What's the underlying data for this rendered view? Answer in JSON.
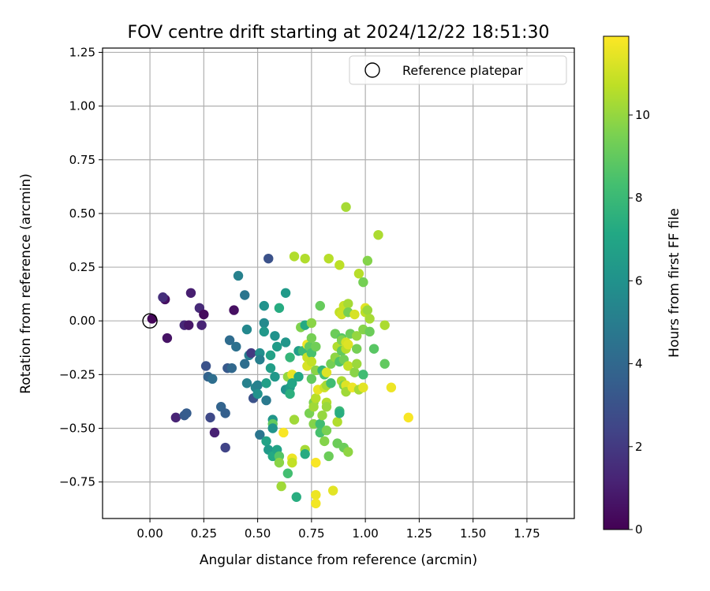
{
  "chart_data": {
    "type": "scatter",
    "title": "FOV centre drift starting at 2024/12/22 18:51:30",
    "xlabel": "Angular distance from reference (arcmin)",
    "ylabel": "Rotation from reference (arcmin)",
    "xlim": [
      -0.22,
      1.97
    ],
    "ylim": [
      -0.92,
      1.27
    ],
    "xticks": [
      0.0,
      0.25,
      0.5,
      0.75,
      1.0,
      1.25,
      1.5,
      1.75
    ],
    "xtick_labels": [
      "0.00",
      "0.25",
      "0.50",
      "0.75",
      "1.00",
      "1.25",
      "1.50",
      "1.75"
    ],
    "yticks": [
      -0.75,
      -0.5,
      -0.25,
      0.0,
      0.25,
      0.5,
      0.75,
      1.0,
      1.25
    ],
    "ytick_labels": [
      "−0.75",
      "−0.50",
      "−0.25",
      "0.00",
      "0.25",
      "0.50",
      "0.75",
      "1.00",
      "1.25"
    ],
    "grid": true,
    "legend": {
      "position": "top-right",
      "entries": [
        "Reference platepar"
      ]
    },
    "reference_point": {
      "x": 0.0,
      "y": 0.0
    },
    "colorbar": {
      "label": "Hours from first FF file",
      "colormap": "viridis",
      "range": [
        0,
        11.9
      ],
      "ticks": [
        0,
        2,
        4,
        6,
        8,
        10
      ],
      "tick_labels": [
        "0",
        "2",
        "4",
        "6",
        "8",
        "10"
      ]
    },
    "points": [
      {
        "x": 0.01,
        "y": 0.01,
        "h": 0.2
      },
      {
        "x": 0.07,
        "y": 0.1,
        "h": 0.5
      },
      {
        "x": 0.06,
        "y": 0.11,
        "h": 1.6
      },
      {
        "x": 0.08,
        "y": -0.08,
        "h": 0.6
      },
      {
        "x": 0.12,
        "y": -0.45,
        "h": 1.2
      },
      {
        "x": 0.16,
        "y": -0.44,
        "h": 3.4
      },
      {
        "x": 0.17,
        "y": -0.43,
        "h": 3.5
      },
      {
        "x": 0.16,
        "y": -0.02,
        "h": 1.3
      },
      {
        "x": 0.18,
        "y": -0.02,
        "h": 0.7
      },
      {
        "x": 0.19,
        "y": 0.13,
        "h": 1.0
      },
      {
        "x": 0.23,
        "y": 0.06,
        "h": 1.4
      },
      {
        "x": 0.25,
        "y": 0.03,
        "h": 0.3
      },
      {
        "x": 0.24,
        "y": -0.02,
        "h": 1.2
      },
      {
        "x": 0.26,
        "y": -0.21,
        "h": 3.0
      },
      {
        "x": 0.27,
        "y": -0.26,
        "h": 3.8
      },
      {
        "x": 0.29,
        "y": -0.27,
        "h": 4.3
      },
      {
        "x": 0.28,
        "y": -0.45,
        "h": 2.6
      },
      {
        "x": 0.3,
        "y": -0.52,
        "h": 1.1
      },
      {
        "x": 0.33,
        "y": -0.4,
        "h": 3.8
      },
      {
        "x": 0.35,
        "y": -0.43,
        "h": 3.6
      },
      {
        "x": 0.35,
        "y": -0.59,
        "h": 2.4
      },
      {
        "x": 0.37,
        "y": -0.09,
        "h": 4.2
      },
      {
        "x": 0.36,
        "y": -0.22,
        "h": 3.3
      },
      {
        "x": 0.38,
        "y": -0.22,
        "h": 4.0
      },
      {
        "x": 0.39,
        "y": 0.05,
        "h": 0.5
      },
      {
        "x": 0.4,
        "y": -0.12,
        "h": 4.4
      },
      {
        "x": 0.41,
        "y": 0.21,
        "h": 5.2
      },
      {
        "x": 0.44,
        "y": 0.12,
        "h": 4.6
      },
      {
        "x": 0.44,
        "y": -0.2,
        "h": 4.3
      },
      {
        "x": 0.45,
        "y": -0.04,
        "h": 5.5
      },
      {
        "x": 0.46,
        "y": -0.16,
        "h": 5.0
      },
      {
        "x": 0.45,
        "y": -0.29,
        "h": 5.2
      },
      {
        "x": 0.47,
        "y": -0.15,
        "h": 2.0
      },
      {
        "x": 0.48,
        "y": -0.36,
        "h": 3.0
      },
      {
        "x": 0.49,
        "y": -0.31,
        "h": 5.4
      },
      {
        "x": 0.5,
        "y": -0.3,
        "h": 5.2
      },
      {
        "x": 0.5,
        "y": -0.34,
        "h": 6.0
      },
      {
        "x": 0.51,
        "y": -0.15,
        "h": 5.8
      },
      {
        "x": 0.51,
        "y": -0.18,
        "h": 5.1
      },
      {
        "x": 0.51,
        "y": -0.53,
        "h": 4.6
      },
      {
        "x": 0.53,
        "y": -0.01,
        "h": 5.6
      },
      {
        "x": 0.53,
        "y": -0.05,
        "h": 6.3
      },
      {
        "x": 0.53,
        "y": 0.07,
        "h": 6.0
      },
      {
        "x": 0.54,
        "y": -0.29,
        "h": 6.7
      },
      {
        "x": 0.54,
        "y": -0.37,
        "h": 4.8
      },
      {
        "x": 0.55,
        "y": 0.29,
        "h": 3.0
      },
      {
        "x": 0.54,
        "y": -0.56,
        "h": 6.9
      },
      {
        "x": 0.55,
        "y": -0.6,
        "h": 6.4
      },
      {
        "x": 0.56,
        "y": -0.16,
        "h": 6.8
      },
      {
        "x": 0.56,
        "y": -0.22,
        "h": 6.6
      },
      {
        "x": 0.57,
        "y": -0.46,
        "h": 6.2
      },
      {
        "x": 0.57,
        "y": -0.48,
        "h": 9.0
      },
      {
        "x": 0.57,
        "y": -0.5,
        "h": 6.1
      },
      {
        "x": 0.57,
        "y": -0.63,
        "h": 7.2
      },
      {
        "x": 0.58,
        "y": -0.07,
        "h": 6.0
      },
      {
        "x": 0.58,
        "y": -0.26,
        "h": 6.3
      },
      {
        "x": 0.59,
        "y": -0.12,
        "h": 6.5
      },
      {
        "x": 0.59,
        "y": -0.6,
        "h": 6.9
      },
      {
        "x": 0.6,
        "y": 0.06,
        "h": 7.3
      },
      {
        "x": 0.6,
        "y": -0.63,
        "h": 8.7
      },
      {
        "x": 0.6,
        "y": -0.66,
        "h": 9.8
      },
      {
        "x": 0.61,
        "y": -0.77,
        "h": 10.2
      },
      {
        "x": 0.62,
        "y": -0.52,
        "h": 11.8
      },
      {
        "x": 0.63,
        "y": 0.13,
        "h": 6.4
      },
      {
        "x": 0.63,
        "y": -0.1,
        "h": 6.2
      },
      {
        "x": 0.63,
        "y": -0.32,
        "h": 6.0
      },
      {
        "x": 0.64,
        "y": -0.26,
        "h": 10.0
      },
      {
        "x": 0.64,
        "y": -0.71,
        "h": 8.3
      },
      {
        "x": 0.65,
        "y": -0.17,
        "h": 7.8
      },
      {
        "x": 0.65,
        "y": -0.31,
        "h": 6.5
      },
      {
        "x": 0.65,
        "y": -0.34,
        "h": 7.5
      },
      {
        "x": 0.66,
        "y": -0.25,
        "h": 11.5
      },
      {
        "x": 0.66,
        "y": -0.29,
        "h": 7.0
      },
      {
        "x": 0.66,
        "y": -0.64,
        "h": 11.6
      },
      {
        "x": 0.66,
        "y": -0.66,
        "h": 10.8
      },
      {
        "x": 0.67,
        "y": 0.3,
        "h": 10.5
      },
      {
        "x": 0.67,
        "y": -0.46,
        "h": 10.2
      },
      {
        "x": 0.68,
        "y": -0.82,
        "h": 7.4
      },
      {
        "x": 0.69,
        "y": -0.14,
        "h": 6.6
      },
      {
        "x": 0.69,
        "y": -0.26,
        "h": 7.1
      },
      {
        "x": 0.7,
        "y": -0.03,
        "h": 9.6
      },
      {
        "x": 0.71,
        "y": -0.14,
        "h": 8.0
      },
      {
        "x": 0.72,
        "y": 0.29,
        "h": 10.5
      },
      {
        "x": 0.72,
        "y": -0.02,
        "h": 7.2
      },
      {
        "x": 0.72,
        "y": -0.6,
        "h": 10.3
      },
      {
        "x": 0.72,
        "y": -0.62,
        "h": 7.3
      },
      {
        "x": 0.73,
        "y": -0.11,
        "h": 11.6
      },
      {
        "x": 0.73,
        "y": -0.17,
        "h": 10.9
      },
      {
        "x": 0.73,
        "y": -0.21,
        "h": 11.2
      },
      {
        "x": 0.74,
        "y": -0.12,
        "h": 9.0
      },
      {
        "x": 0.74,
        "y": -0.43,
        "h": 9.5
      },
      {
        "x": 0.75,
        "y": -0.01,
        "h": 9.8
      },
      {
        "x": 0.75,
        "y": -0.08,
        "h": 9.4
      },
      {
        "x": 0.75,
        "y": -0.15,
        "h": 8.4
      },
      {
        "x": 0.75,
        "y": -0.19,
        "h": 10.8
      },
      {
        "x": 0.75,
        "y": -0.27,
        "h": 9.0
      },
      {
        "x": 0.76,
        "y": -0.38,
        "h": 9.6
      },
      {
        "x": 0.76,
        "y": -0.4,
        "h": 10.2
      },
      {
        "x": 0.76,
        "y": -0.48,
        "h": 9.7
      },
      {
        "x": 0.77,
        "y": -0.12,
        "h": 9.3
      },
      {
        "x": 0.77,
        "y": -0.23,
        "h": 9.8
      },
      {
        "x": 0.77,
        "y": -0.36,
        "h": 10.6
      },
      {
        "x": 0.77,
        "y": -0.66,
        "h": 11.8
      },
      {
        "x": 0.77,
        "y": -0.81,
        "h": 11.6
      },
      {
        "x": 0.77,
        "y": -0.85,
        "h": 11.7
      },
      {
        "x": 0.78,
        "y": -0.32,
        "h": 11.5
      },
      {
        "x": 0.79,
        "y": 0.07,
        "h": 9.1
      },
      {
        "x": 0.79,
        "y": -0.48,
        "h": 8.2
      },
      {
        "x": 0.79,
        "y": -0.52,
        "h": 8.4
      },
      {
        "x": 0.8,
        "y": -0.23,
        "h": 7.8
      },
      {
        "x": 0.8,
        "y": -0.44,
        "h": 10.0
      },
      {
        "x": 0.81,
        "y": -0.25,
        "h": 8.4
      },
      {
        "x": 0.81,
        "y": -0.31,
        "h": 11.0
      },
      {
        "x": 0.81,
        "y": -0.56,
        "h": 9.7
      },
      {
        "x": 0.82,
        "y": -0.24,
        "h": 11.3
      },
      {
        "x": 0.82,
        "y": -0.3,
        "h": 10.3
      },
      {
        "x": 0.82,
        "y": -0.38,
        "h": 10.5
      },
      {
        "x": 0.82,
        "y": -0.4,
        "h": 10.1
      },
      {
        "x": 0.82,
        "y": -0.51,
        "h": 9.5
      },
      {
        "x": 0.83,
        "y": 0.29,
        "h": 10.6
      },
      {
        "x": 0.83,
        "y": -0.63,
        "h": 9.2
      },
      {
        "x": 0.84,
        "y": -0.2,
        "h": 9.4
      },
      {
        "x": 0.84,
        "y": -0.29,
        "h": 8.2
      },
      {
        "x": 0.85,
        "y": -0.79,
        "h": 11.4
      },
      {
        "x": 0.86,
        "y": -0.06,
        "h": 9.2
      },
      {
        "x": 0.86,
        "y": -0.17,
        "h": 9.9
      },
      {
        "x": 0.87,
        "y": -0.12,
        "h": 10.5
      },
      {
        "x": 0.87,
        "y": -0.47,
        "h": 10.5
      },
      {
        "x": 0.87,
        "y": -0.57,
        "h": 9.2
      },
      {
        "x": 0.88,
        "y": 0.26,
        "h": 10.7
      },
      {
        "x": 0.88,
        "y": 0.04,
        "h": 10.8
      },
      {
        "x": 0.88,
        "y": -0.19,
        "h": 8.6
      },
      {
        "x": 0.88,
        "y": -0.42,
        "h": 8.0
      },
      {
        "x": 0.88,
        "y": -0.43,
        "h": 7.4
      },
      {
        "x": 0.89,
        "y": 0.03,
        "h": 11.0
      },
      {
        "x": 0.89,
        "y": -0.08,
        "h": 8.8
      },
      {
        "x": 0.89,
        "y": -0.09,
        "h": 9.6
      },
      {
        "x": 0.89,
        "y": -0.14,
        "h": 9.0
      },
      {
        "x": 0.89,
        "y": -0.28,
        "h": 10.4
      },
      {
        "x": 0.9,
        "y": 0.07,
        "h": 10.9
      },
      {
        "x": 0.9,
        "y": -0.18,
        "h": 9.3
      },
      {
        "x": 0.9,
        "y": -0.3,
        "h": 9.5
      },
      {
        "x": 0.9,
        "y": -0.59,
        "h": 9.2
      },
      {
        "x": 0.91,
        "y": 0.53,
        "h": 10.3
      },
      {
        "x": 0.91,
        "y": -0.1,
        "h": 11.1
      },
      {
        "x": 0.91,
        "y": -0.13,
        "h": 10.6
      },
      {
        "x": 0.91,
        "y": -0.3,
        "h": 11.3
      },
      {
        "x": 0.91,
        "y": -0.33,
        "h": 10.2
      },
      {
        "x": 0.92,
        "y": 0.08,
        "h": 10.3
      },
      {
        "x": 0.92,
        "y": 0.04,
        "h": 9.4
      },
      {
        "x": 0.92,
        "y": -0.11,
        "h": 11.3
      },
      {
        "x": 0.92,
        "y": -0.21,
        "h": 10.8
      },
      {
        "x": 0.92,
        "y": -0.61,
        "h": 9.9
      },
      {
        "x": 0.93,
        "y": -0.06,
        "h": 9.2
      },
      {
        "x": 0.94,
        "y": -0.31,
        "h": 11.6
      },
      {
        "x": 0.95,
        "y": 0.03,
        "h": 11.2
      },
      {
        "x": 0.95,
        "y": -0.24,
        "h": 9.8
      },
      {
        "x": 0.96,
        "y": -0.07,
        "h": 10.0
      },
      {
        "x": 0.96,
        "y": -0.13,
        "h": 9.4
      },
      {
        "x": 0.96,
        "y": -0.2,
        "h": 10.1
      },
      {
        "x": 0.97,
        "y": 0.22,
        "h": 10.6
      },
      {
        "x": 0.97,
        "y": -0.32,
        "h": 10.3
      },
      {
        "x": 0.99,
        "y": 0.18,
        "h": 9.4
      },
      {
        "x": 0.99,
        "y": -0.04,
        "h": 9.7
      },
      {
        "x": 0.99,
        "y": -0.25,
        "h": 8.2
      },
      {
        "x": 0.99,
        "y": -0.31,
        "h": 11.4
      },
      {
        "x": 1.0,
        "y": 0.06,
        "h": 11.4
      },
      {
        "x": 1.0,
        "y": 0.04,
        "h": 10.7
      },
      {
        "x": 1.01,
        "y": 0.28,
        "h": 9.7
      },
      {
        "x": 1.01,
        "y": 0.05,
        "h": 10.1
      },
      {
        "x": 1.02,
        "y": 0.01,
        "h": 10.3
      },
      {
        "x": 1.02,
        "y": -0.05,
        "h": 9.2
      },
      {
        "x": 1.04,
        "y": -0.13,
        "h": 8.8
      },
      {
        "x": 1.06,
        "y": 0.4,
        "h": 10.4
      },
      {
        "x": 1.09,
        "y": -0.02,
        "h": 10.4
      },
      {
        "x": 1.09,
        "y": -0.2,
        "h": 9.0
      },
      {
        "x": 1.12,
        "y": -0.31,
        "h": 11.6
      },
      {
        "x": 1.2,
        "y": -0.45,
        "h": 11.8
      }
    ]
  }
}
